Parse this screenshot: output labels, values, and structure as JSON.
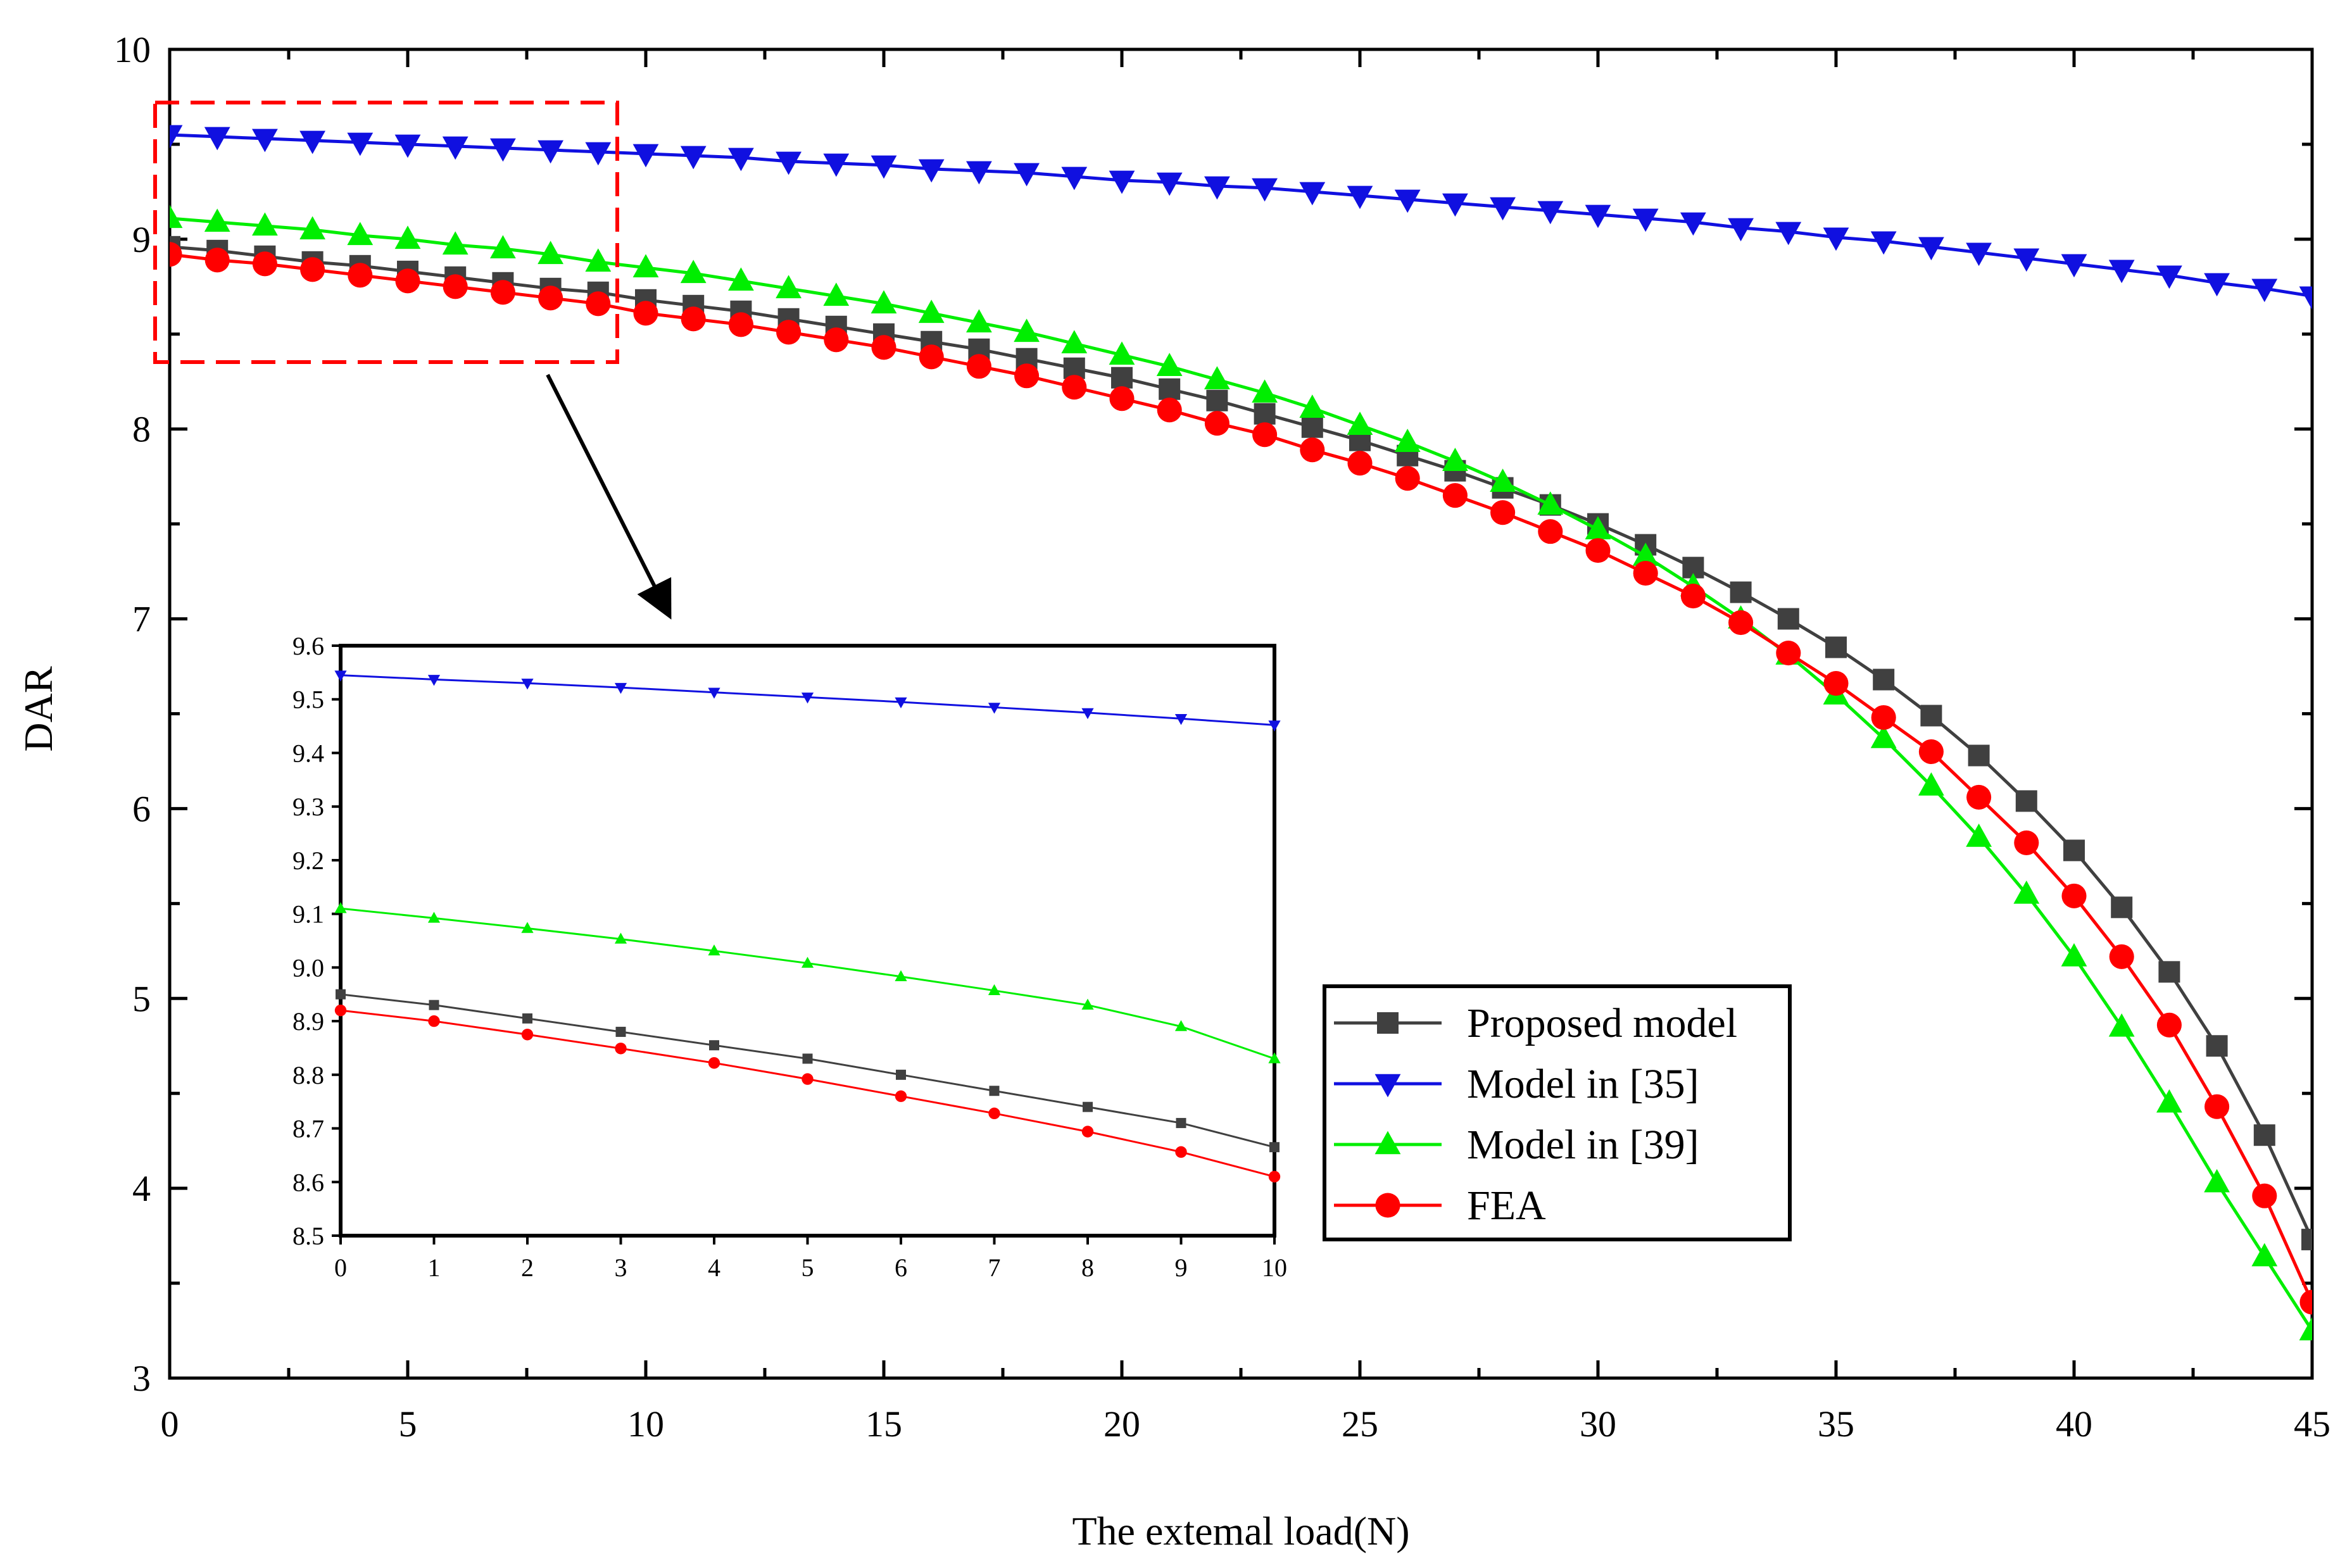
{
  "chart_data": {
    "type": "line",
    "title": "",
    "xlabel": "The extemal load(N)",
    "ylabel": "DAR",
    "xlim": [
      0,
      45
    ],
    "ylim": [
      3,
      10
    ],
    "xticks": [
      "0",
      "5",
      "10",
      "15",
      "20",
      "25",
      "30",
      "35",
      "40",
      "45"
    ],
    "yticks": [
      "3",
      "4",
      "5",
      "6",
      "7",
      "8",
      "9",
      "10"
    ],
    "x": [
      0,
      1,
      2,
      3,
      4,
      5,
      6,
      7,
      8,
      9,
      10,
      11,
      12,
      13,
      14,
      15,
      16,
      17,
      18,
      19,
      20,
      21,
      22,
      23,
      24,
      25,
      26,
      27,
      28,
      29,
      30,
      31,
      32,
      33,
      34,
      35,
      36,
      37,
      38,
      39,
      40,
      41,
      42,
      43,
      44,
      45
    ],
    "series": [
      {
        "name": "Proposed model",
        "color": "#404040",
        "marker": "square",
        "values": [
          8.96,
          8.94,
          8.91,
          8.88,
          8.86,
          8.83,
          8.8,
          8.77,
          8.74,
          8.72,
          8.68,
          8.65,
          8.62,
          8.58,
          8.54,
          8.5,
          8.46,
          8.42,
          8.37,
          8.32,
          8.27,
          8.21,
          8.15,
          8.08,
          8.01,
          7.94,
          7.86,
          7.78,
          7.69,
          7.6,
          7.5,
          7.39,
          7.27,
          7.14,
          7.0,
          6.85,
          6.68,
          6.49,
          6.28,
          6.04,
          5.78,
          5.48,
          5.14,
          4.75,
          4.28,
          3.73
        ]
      },
      {
        "name": "Model in [35]",
        "color": "#1010e0",
        "marker": "triangle-down",
        "values": [
          9.55,
          9.54,
          9.53,
          9.52,
          9.51,
          9.5,
          9.49,
          9.48,
          9.47,
          9.46,
          9.45,
          9.44,
          9.43,
          9.41,
          9.4,
          9.39,
          9.37,
          9.36,
          9.35,
          9.33,
          9.31,
          9.3,
          9.28,
          9.27,
          9.25,
          9.23,
          9.21,
          9.19,
          9.17,
          9.15,
          9.13,
          9.11,
          9.09,
          9.06,
          9.04,
          9.01,
          8.99,
          8.96,
          8.93,
          8.9,
          8.87,
          8.84,
          8.81,
          8.77,
          8.74,
          8.7
        ]
      },
      {
        "name": "Model in [39]",
        "color": "#00ee00",
        "marker": "triangle-up",
        "values": [
          9.11,
          9.09,
          9.07,
          9.05,
          9.02,
          9.0,
          8.97,
          8.95,
          8.92,
          8.88,
          8.85,
          8.82,
          8.78,
          8.74,
          8.7,
          8.66,
          8.61,
          8.56,
          8.51,
          8.45,
          8.39,
          8.33,
          8.26,
          8.19,
          8.11,
          8.02,
          7.93,
          7.83,
          7.72,
          7.6,
          7.47,
          7.33,
          7.17,
          7.0,
          6.81,
          6.6,
          6.37,
          6.12,
          5.85,
          5.55,
          5.22,
          4.85,
          4.45,
          4.03,
          3.64,
          3.25
        ]
      },
      {
        "name": "FEA",
        "color": "#ff0000",
        "marker": "circle",
        "values": [
          8.92,
          8.89,
          8.87,
          8.84,
          8.81,
          8.78,
          8.75,
          8.72,
          8.69,
          8.66,
          8.61,
          8.58,
          8.55,
          8.51,
          8.47,
          8.43,
          8.38,
          8.33,
          8.28,
          8.22,
          8.16,
          8.1,
          8.03,
          7.97,
          7.89,
          7.82,
          7.74,
          7.65,
          7.56,
          7.46,
          7.36,
          7.24,
          7.12,
          6.98,
          6.82,
          6.66,
          6.48,
          6.3,
          6.06,
          5.82,
          5.54,
          5.22,
          4.86,
          4.43,
          3.96,
          3.4
        ]
      }
    ],
    "inset": {
      "type": "line",
      "xlim": [
        0,
        10
      ],
      "ylim": [
        8.5,
        9.6
      ],
      "xticks": [
        "0",
        "1",
        "2",
        "3",
        "4",
        "5",
        "6",
        "7",
        "8",
        "9",
        "10"
      ],
      "yticks": [
        "8.5",
        "8.6",
        "8.7",
        "8.8",
        "8.9",
        "9.0",
        "9.1",
        "9.2",
        "9.3",
        "9.4",
        "9.5",
        "9.6"
      ],
      "x": [
        0,
        1,
        2,
        3,
        4,
        5,
        6,
        7,
        8,
        9,
        10
      ],
      "series": [
        {
          "name": "Proposed model",
          "values": [
            8.95,
            8.93,
            8.905,
            8.88,
            8.855,
            8.83,
            8.8,
            8.77,
            8.74,
            8.71,
            8.665
          ]
        },
        {
          "name": "Model in [35]",
          "values": [
            9.545,
            9.537,
            9.53,
            9.522,
            9.513,
            9.504,
            9.495,
            9.485,
            9.475,
            9.464,
            9.452
          ]
        },
        {
          "name": "Model in [39]",
          "values": [
            9.11,
            9.092,
            9.073,
            9.053,
            9.031,
            9.008,
            8.983,
            8.957,
            8.93,
            8.89,
            8.83
          ]
        },
        {
          "name": "FEA",
          "values": [
            8.92,
            8.9,
            8.875,
            8.849,
            8.822,
            8.792,
            8.76,
            8.728,
            8.694,
            8.656,
            8.61
          ]
        }
      ]
    }
  }
}
